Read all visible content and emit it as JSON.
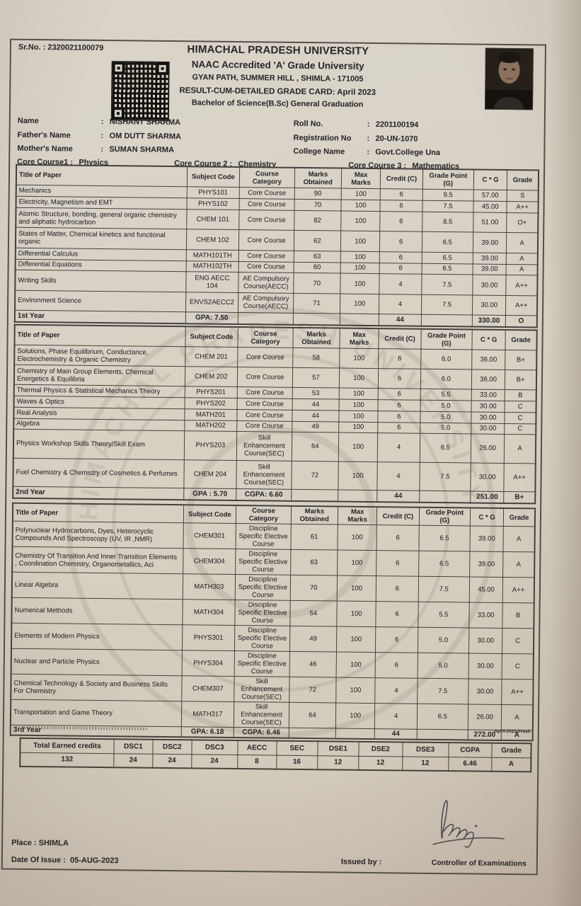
{
  "colon": ":",
  "header": {
    "sr_no_label": "Sr.No. :",
    "sr_no": "2320021100079",
    "university": "HIMACHAL PRADESH UNIVERSITY",
    "accreditation": "NAAC Accredited 'A' Grade University",
    "address": "GYAN PATH, SUMMER HILL , SHIMLA - 171005",
    "result_title": "RESULT-CUM-DETAILED GRADE CARD: April 2023",
    "program": "Bachelor of Science(B.Sc) General Graduation",
    "watermark": "HIMACHAL PRADESH UNIVERSITY"
  },
  "student": {
    "name_label": "Name",
    "name": "NISHANT SHARMA",
    "father_label": "Father's Name",
    "father": "OM DUTT SHARMA",
    "mother_label": "Mother's Name",
    "mother": "SUMAN SHARMA",
    "roll_label": "Roll No.",
    "roll": "2201100194",
    "reg_label": "Registration No",
    "reg": "20-UN-1070",
    "college_label": "College Name",
    "college": "Govt.College Una",
    "core1_label": "Core Course1",
    "core1": "Physics",
    "core2_label": "Core Course 2",
    "core2": "Chemistry",
    "core3_label": "Core Course 3",
    "core3": "Mathematics"
  },
  "columns": [
    "Title of Paper",
    "Subject Code",
    "Course Category",
    "Marks Obtained",
    "Max Marks",
    "Credit (C)",
    "Grade Point (G)",
    "C * G",
    "Grade"
  ],
  "tables": [
    {
      "rows": [
        [
          "Mechanics",
          "PHYS101",
          "Core Course",
          "90",
          "100",
          "6",
          "9.5",
          "57.00",
          "S"
        ],
        [
          "Electricity, Magnetism and EMT",
          "PHYS102",
          "Core Course",
          "70",
          "100",
          "6",
          "7.5",
          "45.00",
          "A++"
        ],
        [
          "Atomic Structure, bonding, general organic chemistry and aliphatic hydrocarbon",
          "CHEM 101",
          "Core Course",
          "82",
          "100",
          "6",
          "8.5",
          "51.00",
          "O+"
        ],
        [
          "States of Matter, Chemical kinetics and functional organic",
          "CHEM 102",
          "Core Course",
          "62",
          "100",
          "6",
          "6.5",
          "39.00",
          "A"
        ],
        [
          "Differential Calculus",
          "MATH101TH",
          "Core Course",
          "63",
          "100",
          "6",
          "6.5",
          "39.00",
          "A"
        ],
        [
          "Differential Equations",
          "MATH102TH",
          "Core Course",
          "60",
          "100",
          "6",
          "6.5",
          "39.00",
          "A"
        ],
        [
          "Writing Skills",
          "ENG AECC 104",
          "AE Compulsory Course(AECC)",
          "70",
          "100",
          "4",
          "7.5",
          "30.00",
          "A++"
        ],
        [
          "Environment Science",
          "ENVS2AECC2",
          "AE Compulsory Course(AECC)",
          "71",
          "100",
          "4",
          "7.5",
          "30.00",
          "A++"
        ]
      ],
      "summary": [
        "1st Year",
        "GPA: 7.50",
        "",
        "",
        "",
        "44",
        "",
        "330.00",
        "O"
      ]
    },
    {
      "rows": [
        [
          "Solutions, Phase Equilibrium, Conductance, Electrochemistry & Organic Chemistry",
          "CHEM 201",
          "Core Course",
          "58",
          "100",
          "6",
          "6.0",
          "36.00",
          "B+"
        ],
        [
          "Chemistry of Main Group Elements, Chemical Energetics & Equilibria",
          "CHEM 202",
          "Core Course",
          "57",
          "100",
          "6",
          "6.0",
          "36.00",
          "B+"
        ],
        [
          "Thermal Physics & Statistical Mechanics Theory",
          "PHYS201",
          "Core Course",
          "53",
          "100",
          "6",
          "5.5",
          "33.00",
          "B"
        ],
        [
          "Waves & Optics",
          "PHYS202",
          "Core Course",
          "44",
          "100",
          "6",
          "5.0",
          "30.00",
          "C"
        ],
        [
          "Real Analysis",
          "MATH201",
          "Core Course",
          "44",
          "100",
          "6",
          "5.0",
          "30.00",
          "C"
        ],
        [
          "Algebra",
          "MATH202",
          "Core Course",
          "49",
          "100",
          "6",
          "5.0",
          "30.00",
          "C"
        ],
        [
          "Physics Workshop Skills Theory/Skill Exam",
          "PHYS203",
          "Skill Enhancement Course(SEC)",
          "64",
          "100",
          "4",
          "6.5",
          "26.00",
          "A"
        ],
        [
          "Fuel Chemistry & Chemistry of Cosmetics & Perfumes",
          "CHEM 204",
          "Skill Enhancement Course(SEC)",
          "72",
          "100",
          "4",
          "7.5",
          "30.00",
          "A++"
        ]
      ],
      "summary": [
        "2nd Year",
        "GPA : 5.70",
        "CGPA: 6.60",
        "",
        "",
        "44",
        "",
        "251.00",
        "B+"
      ]
    },
    {
      "rows": [
        [
          "Polynuclear Hydrocarbons, Dyes, Heterocyclic Compounds And Spectroscopy (UV, IR ,NMR)",
          "CHEM301",
          "Discipline Specific Elective Course",
          "61",
          "100",
          "6",
          "6.5",
          "39.00",
          "A"
        ],
        [
          "Chemistry Of Transition And Inner Transition Elements , Coordination Chemistry, Organometallics, Aci",
          "CHEM304",
          "Discipline Specific Elective Course",
          "63",
          "100",
          "6",
          "6.5",
          "39.00",
          "A"
        ],
        [
          "Linear Algebra",
          "MATH303",
          "Discipline Specific Elective Course",
          "70",
          "100",
          "6",
          "7.5",
          "45.00",
          "A++"
        ],
        [
          "Numerical Methods",
          "MATH304",
          "Discipline Specific Elective Course",
          "54",
          "100",
          "6",
          "5.5",
          "33.00",
          "B"
        ],
        [
          "Elements of Modern Physics",
          "PHYS301",
          "Discipline Specific Elective Course",
          "49",
          "100",
          "6",
          "5.0",
          "30.00",
          "C"
        ],
        [
          "Nuclear and Particle Physics",
          "PHYS304",
          "Discipline Specific Elective Course",
          "46",
          "100",
          "6",
          "5.0",
          "30.00",
          "C"
        ],
        [
          "Chemical Technology & Society and Business Skills For Chemistry",
          "CHEM307",
          "Skill Enhancement Course(SEC)",
          "72",
          "100",
          "4",
          "7.5",
          "30.00",
          "A++"
        ],
        [
          "Transportation and Game Theory",
          "MATH317",
          "Skill Enhancement Course(SEC)",
          "64",
          "100",
          "4",
          "6.5",
          "26.00",
          "A"
        ]
      ],
      "summary": [
        "3rd Year",
        "GPA: 6.18",
        "CGPA: 6.46",
        "",
        "",
        "44",
        "",
        "272.00",
        "A"
      ]
    }
  ],
  "totals": {
    "headers": [
      "Total Earned credits",
      "DSC1",
      "DSC2",
      "DSC3",
      "AECC",
      "SEC",
      "DSE1",
      "DSE2",
      "DSE3",
      "CGPA",
      "Grade"
    ],
    "values": [
      "132",
      "24",
      "24",
      "24",
      "8",
      "16",
      "12",
      "12",
      "12",
      "6.46",
      "A"
    ]
  },
  "footer": {
    "batch_note": "April-2023-Fresh",
    "place_label": "Place",
    "place": "SHIMLA",
    "date_label": "Date Of Issue",
    "date": "05-AUG-2023",
    "issued_label": "Issued by",
    "issued": "",
    "controller": "Controller of Examinations"
  }
}
